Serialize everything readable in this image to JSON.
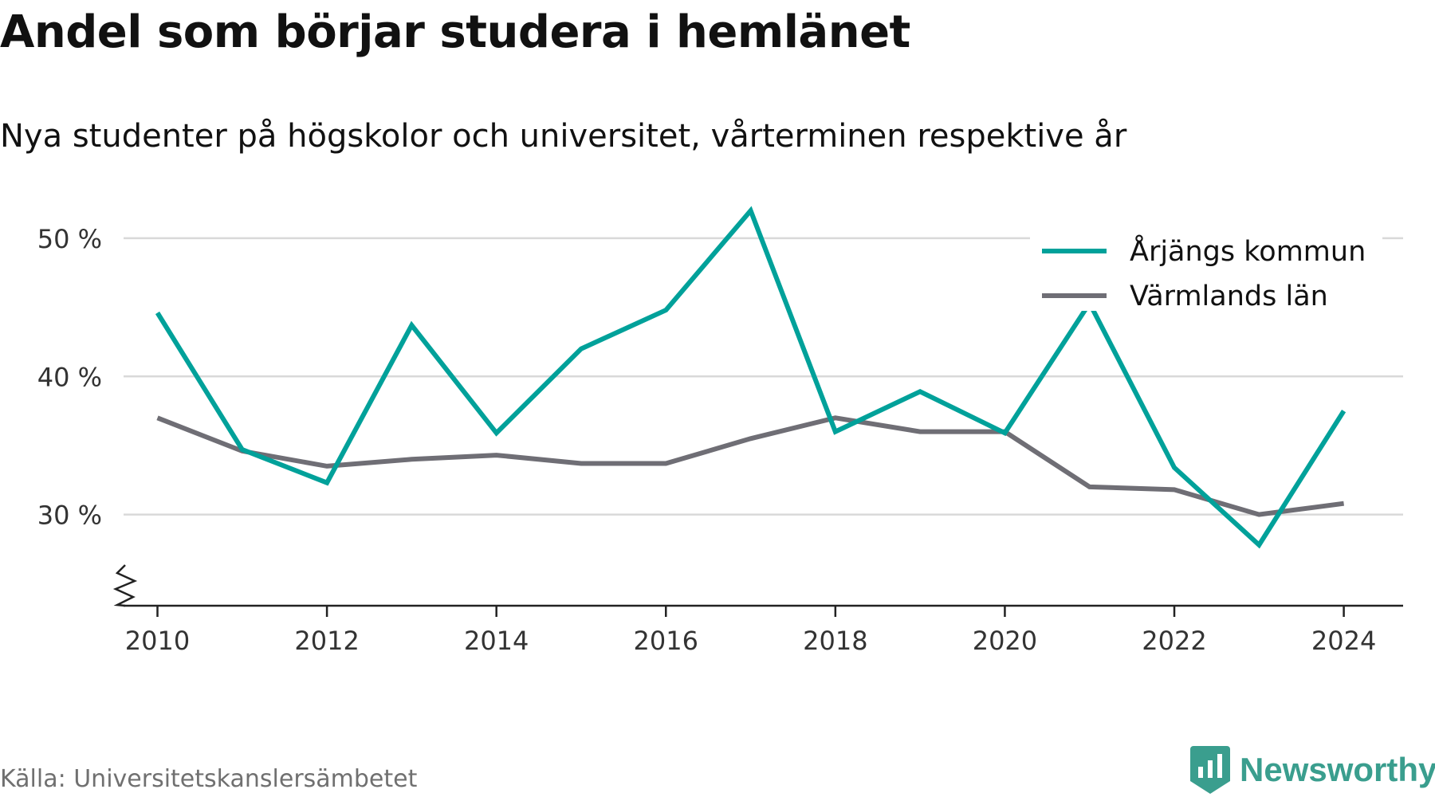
{
  "title": "Andel som börjar studera i hemlänet",
  "subtitle": "Nya studenter på högskolor och universitet, vårterminen respektive år",
  "source": "Källa: Universitetskanslersämbetet",
  "brand": {
    "name": "Newsworthy",
    "color": "#3a9e8e",
    "logo_icon": "bar-chart-badge-icon"
  },
  "colors": {
    "grid": "#d9d9d9",
    "axis": "#222222",
    "text": "#333333"
  },
  "chart_data": {
    "type": "line",
    "x": [
      2010,
      2011,
      2012,
      2013,
      2014,
      2015,
      2016,
      2017,
      2018,
      2019,
      2020,
      2021,
      2022,
      2023,
      2024
    ],
    "x_ticks": [
      2010,
      2012,
      2014,
      2016,
      2018,
      2020,
      2022,
      2024
    ],
    "y_ticks": [
      30,
      40,
      50
    ],
    "y_tick_labels": [
      "30 %",
      "40 %",
      "50 %"
    ],
    "ylim": [
      23.4,
      53.4
    ],
    "xlim": [
      2009.6,
      2024.7
    ],
    "y_axis_broken": true,
    "grid": true,
    "legend_position": "top-right",
    "series": [
      {
        "name": "Årjängs kommun",
        "color": "#00a19a",
        "values": [
          44.6,
          34.7,
          32.3,
          43.7,
          35.9,
          42.0,
          44.8,
          52.0,
          36.0,
          38.9,
          35.9,
          45.3,
          33.4,
          27.8,
          37.5
        ]
      },
      {
        "name": "Värmlands län",
        "color": "#6f6e75",
        "values": [
          37.0,
          34.6,
          33.5,
          34.0,
          34.3,
          33.7,
          33.7,
          35.5,
          37.0,
          36.0,
          36.0,
          32.0,
          31.8,
          30.0,
          30.8
        ]
      }
    ]
  }
}
